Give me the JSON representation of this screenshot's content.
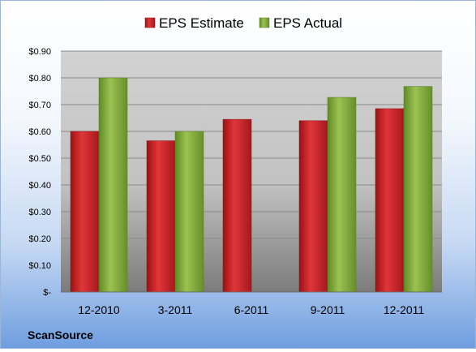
{
  "chart_data": {
    "type": "bar",
    "categories": [
      "12-2010",
      "3-2011",
      "6-2011",
      "9-2011",
      "12-2011"
    ],
    "series": [
      {
        "name": "EPS Estimate",
        "values": [
          0.6,
          0.565,
          0.645,
          0.64,
          0.685
        ],
        "color": "#cc1f24"
      },
      {
        "name": "EPS Actual",
        "values": [
          0.8,
          0.6,
          null,
          0.727,
          0.768
        ],
        "color": "#7fa83a"
      }
    ],
    "ylim": [
      0,
      0.9
    ],
    "yticks": [
      0,
      0.1,
      0.2,
      0.3,
      0.4,
      0.5,
      0.6,
      0.7,
      0.8,
      0.9
    ],
    "ytick_labels": [
      "$-",
      "$0.10",
      "$0.20",
      "$0.30",
      "$0.40",
      "$0.50",
      "$0.60",
      "$0.70",
      "$0.80",
      "$0.90"
    ],
    "legend_position": "top",
    "grid": true
  },
  "footer": {
    "company": "ScanSource"
  }
}
